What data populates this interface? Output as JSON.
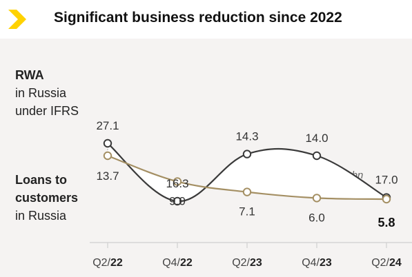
{
  "title": "Significant business reduction since 2022",
  "rwa_label": {
    "line1": "RWA",
    "line2": "in Russia",
    "line3": "under IFRS"
  },
  "loans_label": {
    "line1": "Loans to",
    "line2": "customers",
    "line3": "in Russia"
  },
  "unit_note": "in EUR bn",
  "colors": {
    "accent": "#ffd200",
    "rwa_line": "#3a3a3a",
    "loans_line": "#a48f63",
    "background": "#f5f3f2"
  },
  "chart_data": {
    "type": "line",
    "categories": [
      "Q2/22",
      "Q4/22",
      "Q2/23",
      "Q4/23",
      "Q2/24"
    ],
    "category_parts": [
      {
        "quarter": "Q2/",
        "year": "22"
      },
      {
        "quarter": "Q4/",
        "year": "22"
      },
      {
        "quarter": "Q2/",
        "year": "23"
      },
      {
        "quarter": "Q4/",
        "year": "23"
      },
      {
        "quarter": "Q2/",
        "year": "24"
      }
    ],
    "series": [
      {
        "name": "RWA in Russia under IFRS",
        "values": [
          27.1,
          16.3,
          14.3,
          14.0,
          17.0
        ],
        "labels": [
          "27.1",
          "16.3",
          "14.3",
          "14.0",
          "17.0"
        ]
      },
      {
        "name": "Loans to customers in Russia",
        "values": [
          13.7,
          9.0,
          7.1,
          6.0,
          5.8
        ],
        "labels": [
          "13.7",
          "9.0",
          "7.1",
          "6.0",
          "5.8"
        ]
      }
    ],
    "area_between_series": true,
    "grid": false,
    "legend": "left"
  }
}
